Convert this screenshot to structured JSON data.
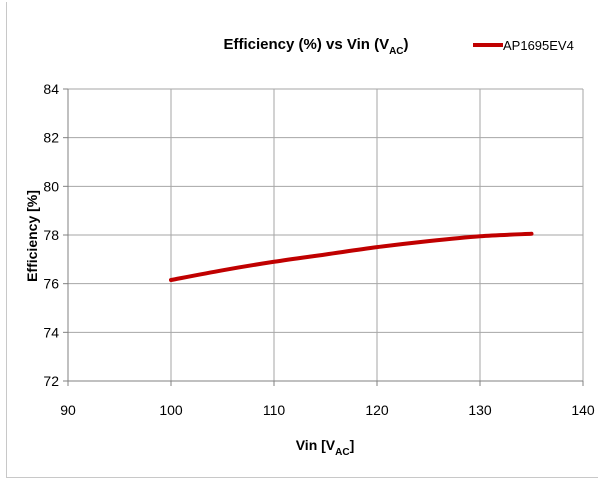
{
  "chart_data": {
    "type": "line",
    "title": {
      "main": "Efficiency (%) vs Vin (V",
      "sub": "AC",
      "end": ")"
    },
    "xlabel": {
      "main": "Vin [V",
      "sub": "AC",
      "end": "]"
    },
    "ylabel": "Efficiency [%]",
    "xlim": [
      90,
      140
    ],
    "ylim": [
      72,
      84
    ],
    "xticks": [
      90,
      100,
      110,
      120,
      130,
      140
    ],
    "yticks": [
      72,
      74,
      76,
      78,
      80,
      82,
      84
    ],
    "grid": true,
    "legend_position": "top-right",
    "series": [
      {
        "name": "AP1695EV4",
        "color": "#c00000",
        "x": [
          100,
          105,
          110,
          115,
          120,
          125,
          130,
          135
        ],
        "y": [
          76.15,
          76.55,
          76.9,
          77.2,
          77.5,
          77.75,
          77.95,
          78.05
        ]
      }
    ]
  }
}
